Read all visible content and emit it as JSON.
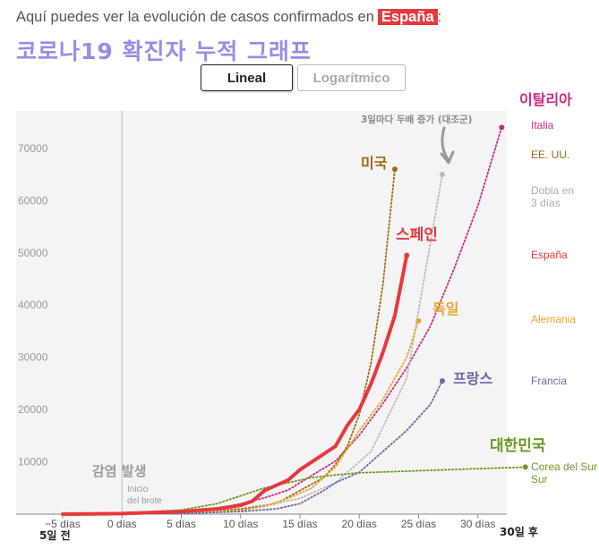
{
  "header": {
    "subtitle_prefix": "Aquí puedes ver la evolución de casos confirmados en",
    "country": "España",
    "subtitle_suffix": ":",
    "korean_title": "코로나19 확진자 누적 그래프"
  },
  "toggle": {
    "active_label": "Lineal",
    "inactive_label": "Logarítmico"
  },
  "chart_data": {
    "type": "line",
    "x_tick_labels": [
      "−5 días",
      "0 días",
      "5 días",
      "10 días",
      "15 días",
      "20 días",
      "25 días",
      "30 días"
    ],
    "x_ticks": [
      -5,
      0,
      5,
      10,
      15,
      20,
      25,
      30
    ],
    "y_tick_labels": [
      "10000",
      "20000",
      "30000",
      "40000",
      "50000",
      "60000",
      "70000"
    ],
    "y_ticks": [
      10000,
      20000,
      30000,
      40000,
      50000,
      60000,
      70000
    ],
    "xlim": [
      -8,
      34
    ],
    "ylim": [
      0,
      77000
    ],
    "grid": false,
    "annotations": {
      "outbreak_kr": "감염 발생",
      "outbreak_es": "Inicio del brote",
      "left_kr": "5일 전",
      "right_kr": "30일 후",
      "doubling_kr": "3일마다 두배 증가 (대조군)"
    },
    "series": [
      {
        "name": "Italia",
        "name_kr": "이탈리아",
        "color": "#cc2a7e",
        "style": "dotted",
        "x": [
          -5,
          0,
          5,
          8,
          10,
          12,
          14,
          16,
          18,
          20,
          22,
          24,
          26,
          28,
          30,
          32
        ],
        "y": [
          0,
          100,
          300,
          1000,
          2000,
          3100,
          4600,
          7400,
          10150,
          15100,
          21200,
          28000,
          36000,
          47000,
          59000,
          74000
        ]
      },
      {
        "name": "EE. UU.",
        "name_kr": "미국",
        "color": "#a06a10",
        "style": "dotted",
        "x": [
          -5,
          5,
          10,
          13,
          15,
          17,
          18,
          19,
          20,
          21,
          22,
          23
        ],
        "y": [
          0,
          300,
          1000,
          2000,
          4500,
          7000,
          9500,
          13000,
          19000,
          29000,
          44000,
          66000
        ]
      },
      {
        "name": "Dobla en 3 días",
        "color": "#bbbbbb",
        "style": "dotted",
        "x": [
          -5,
          0,
          5,
          10,
          15,
          18,
          21,
          24,
          27
        ],
        "y": [
          0,
          0,
          150,
          650,
          3000,
          6000,
          12000,
          26000,
          65000
        ]
      },
      {
        "name": "España",
        "name_kr": "스페인",
        "color": "#e8383d",
        "style": "solid",
        "x": [
          -5,
          0,
          5,
          8,
          10,
          11,
          12,
          13,
          14,
          15,
          16,
          17,
          18,
          19,
          20,
          21,
          22,
          23,
          24
        ],
        "y": [
          0,
          100,
          500,
          1000,
          1700,
          2500,
          4500,
          5500,
          6500,
          8500,
          10000,
          11500,
          13000,
          17000,
          20000,
          25000,
          31000,
          38000,
          49500
        ]
      },
      {
        "name": "Alemania",
        "name_kr": "독일",
        "color": "#e6a630",
        "style": "dotted",
        "x": [
          -5,
          5,
          10,
          12,
          14,
          16,
          17,
          18,
          20,
          22,
          24,
          25
        ],
        "y": [
          0,
          200,
          700,
          1500,
          3000,
          5000,
          7000,
          9000,
          16000,
          22000,
          30000,
          37000
        ]
      },
      {
        "name": "Francia",
        "name_kr": "프랑스",
        "color": "#6a6aa8",
        "style": "dotted",
        "x": [
          -5,
          5,
          10,
          13,
          15,
          17,
          18,
          20,
          22,
          24,
          26,
          27
        ],
        "y": [
          0,
          100,
          500,
          1000,
          2000,
          4500,
          6000,
          8000,
          12000,
          16000,
          21000,
          25500
        ]
      },
      {
        "name": "Corea del Sur",
        "name_kr": "대한민국",
        "color": "#6a9a1e",
        "style": "dotted",
        "x": [
          -5,
          0,
          5,
          8,
          10,
          12,
          14,
          16,
          18,
          20,
          25,
          30,
          34
        ],
        "y": [
          0,
          150,
          800,
          2000,
          3500,
          5000,
          6000,
          7000,
          7500,
          7900,
          8300,
          8700,
          9000
        ]
      }
    ]
  }
}
